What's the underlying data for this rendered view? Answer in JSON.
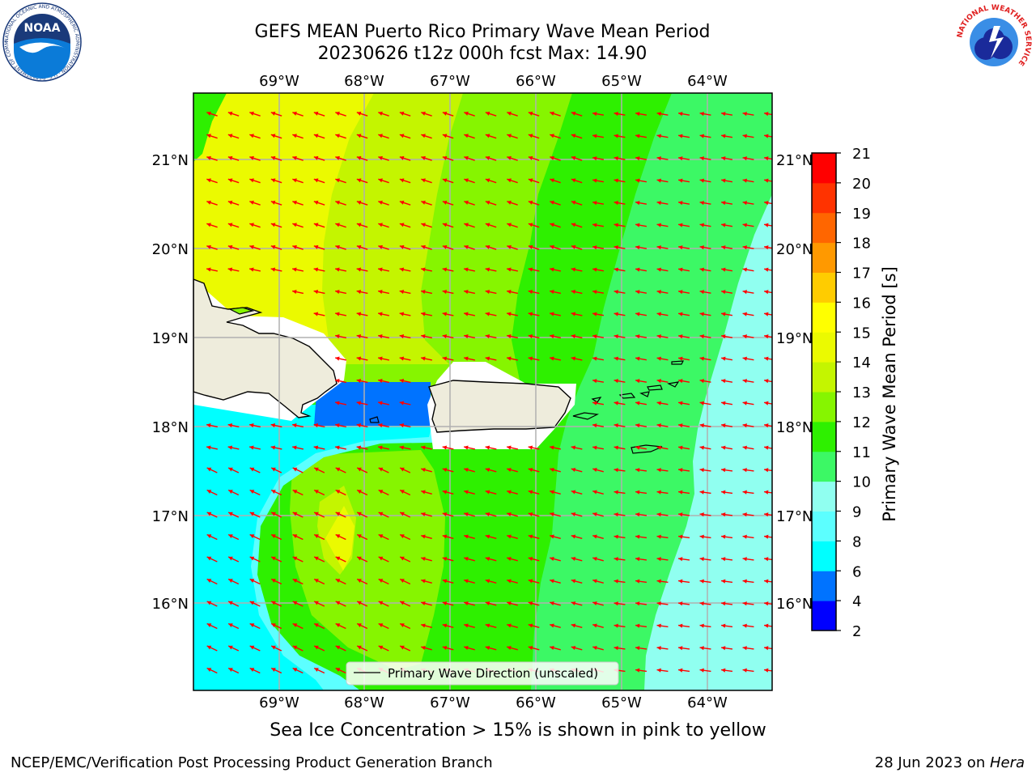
{
  "header": {
    "title_line1": "GEFS MEAN Puerto Rico Primary Wave Mean Period",
    "title_line2": "20230626 t12z 000h fcst   Max: 14.90"
  },
  "logos": {
    "left_text": "NOAA",
    "left_ring": "NATIONAL OCEANIC AND ATMOSPHERIC ADMINISTRATION · U.S. DEPARTMENT OF COMMERCE",
    "right_ring": "NATIONAL WEATHER SERVICE"
  },
  "map": {
    "lon_labels": [
      "69°W",
      "68°W",
      "67°W",
      "66°W",
      "65°W",
      "64°W"
    ],
    "lat_labels": [
      "21°N",
      "20°N",
      "19°N",
      "18°N",
      "17°N",
      "16°N"
    ],
    "legend_label": "Primary Wave Direction (unscaled)",
    "arrow_color": "#ff0000",
    "land_color": "#eeecdc"
  },
  "colorbar": {
    "label": "Primary Wave Mean Period [s]",
    "ticks": [
      "2",
      "4",
      "6",
      "8",
      "9",
      "10",
      "11",
      "12",
      "13",
      "14",
      "15",
      "16",
      "17",
      "18",
      "19",
      "20",
      "21"
    ],
    "colors": [
      "#0000ff",
      "#0073ff",
      "#00ffff",
      "#5cffff",
      "#90fff0",
      "#3cf865",
      "#2ef000",
      "#86f500",
      "#c4f500",
      "#ebfa00",
      "#ffff00",
      "#ffcc00",
      "#ff9900",
      "#ff6600",
      "#ff3300",
      "#ff0000"
    ]
  },
  "notes": {
    "sea_ice": "Sea Ice Concentration > 15% is shown in pink to yellow"
  },
  "footer": {
    "left": "NCEP/EMC/Verification Post Processing Product Generation Branch",
    "date": "28 Jun 2023 on ",
    "machine": "Hera"
  }
}
